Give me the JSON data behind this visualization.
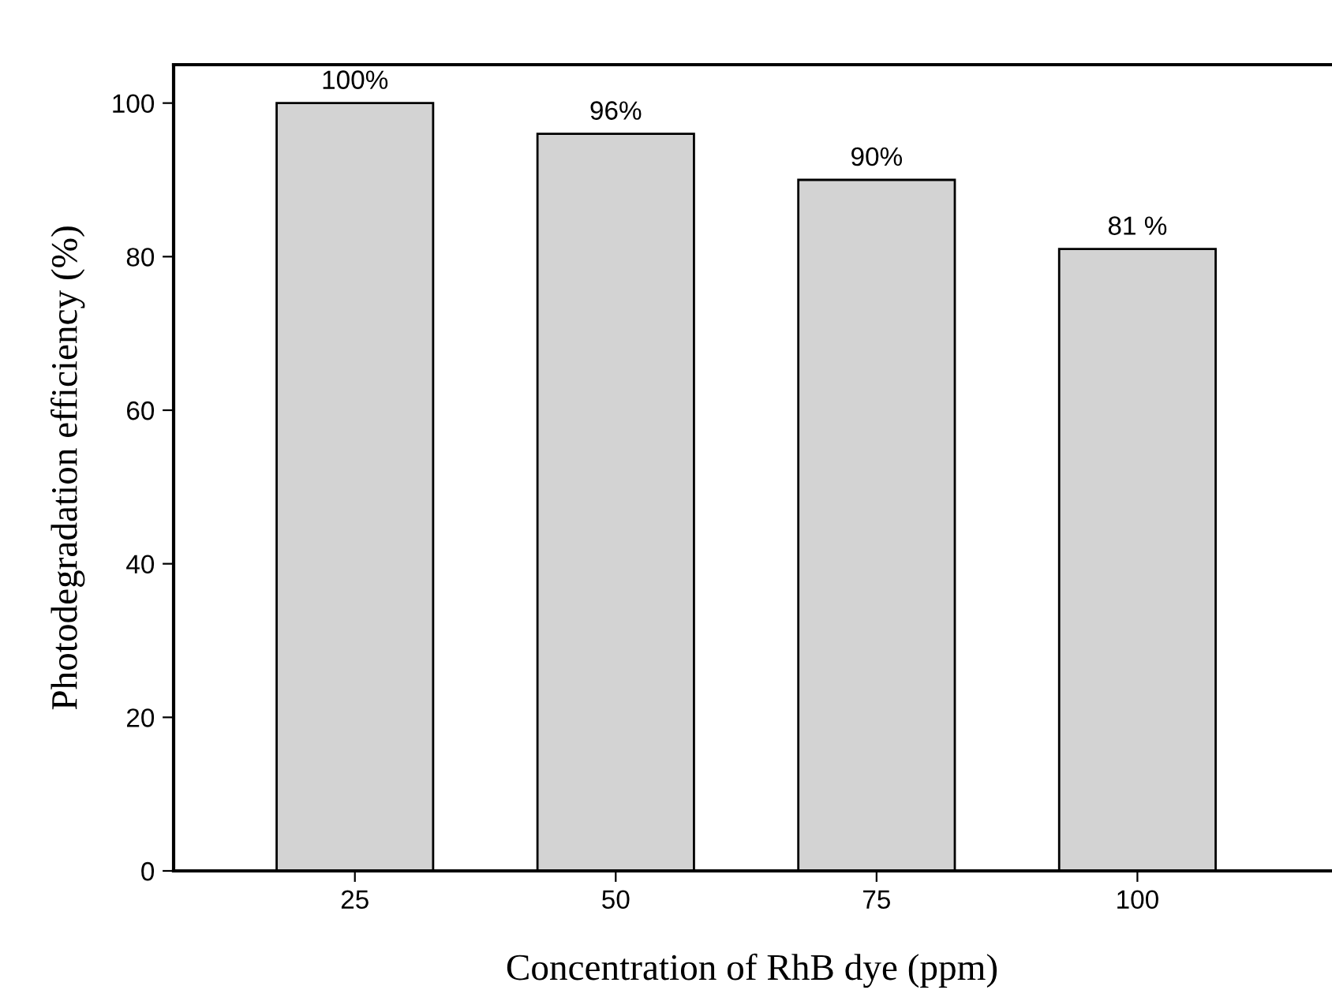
{
  "chart_data": {
    "type": "bar",
    "xlabel": "Concentration of RhB dye (ppm)",
    "ylabel": "Photodegradation efficiency (%)",
    "categories": [
      "25",
      "50",
      "75",
      "100"
    ],
    "values": [
      100,
      96,
      90,
      81
    ],
    "value_labels": [
      "100%",
      "96%",
      "90%",
      "81 %"
    ],
    "color": "#d3d3d3",
    "ylim": [
      0,
      105
    ],
    "yticks": [
      0,
      20,
      40,
      60,
      80,
      100
    ],
    "grid": false
  }
}
